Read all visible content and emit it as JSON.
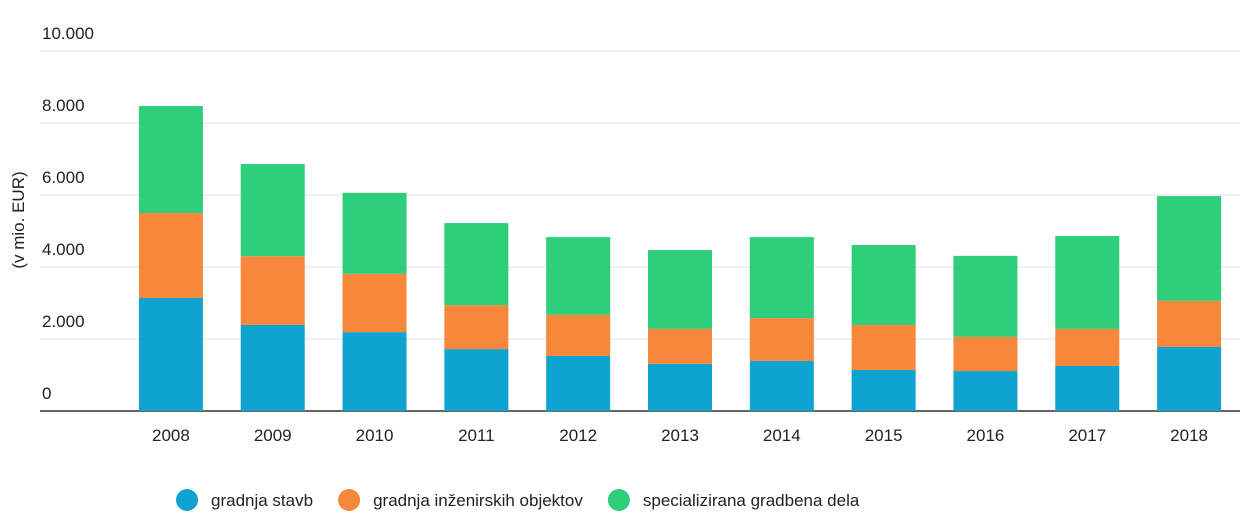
{
  "chart_data": {
    "type": "stacked_bar",
    "y_label": "(v mio. EUR)",
    "categories": [
      "2008",
      "2009",
      "2010",
      "2011",
      "2012",
      "2013",
      "2014",
      "2015",
      "2016",
      "2017",
      "2018"
    ],
    "series": [
      {
        "name": "gradnja stavb",
        "color": "#0fa3d1",
        "values": [
          3140,
          2390,
          2190,
          1720,
          1530,
          1310,
          1390,
          1140,
          1110,
          1250,
          1780
        ]
      },
      {
        "name": "gradnja inženirskih objektov",
        "color": "#f7873a",
        "values": [
          2360,
          1910,
          1620,
          1220,
          1140,
          970,
          1190,
          1250,
          950,
          1030,
          1280
        ]
      },
      {
        "name": "specializirana gradbena dela",
        "color": "#2ecf7b",
        "values": [
          2970,
          2560,
          2250,
          2280,
          2160,
          2190,
          2250,
          2220,
          2250,
          2580,
          2910
        ]
      }
    ],
    "ylim": [
      0,
      10000
    ],
    "yticks": [
      0,
      {
        "value": 2000,
        "label": "2.000"
      },
      {
        "value": 4000,
        "label": "4.000"
      },
      {
        "value": 6000,
        "label": "6.000"
      },
      {
        "value": 8000,
        "label": "8.000"
      },
      {
        "value": 10000,
        "label": "10.000"
      }
    ],
    "grid": true,
    "legend": "bottom"
  }
}
